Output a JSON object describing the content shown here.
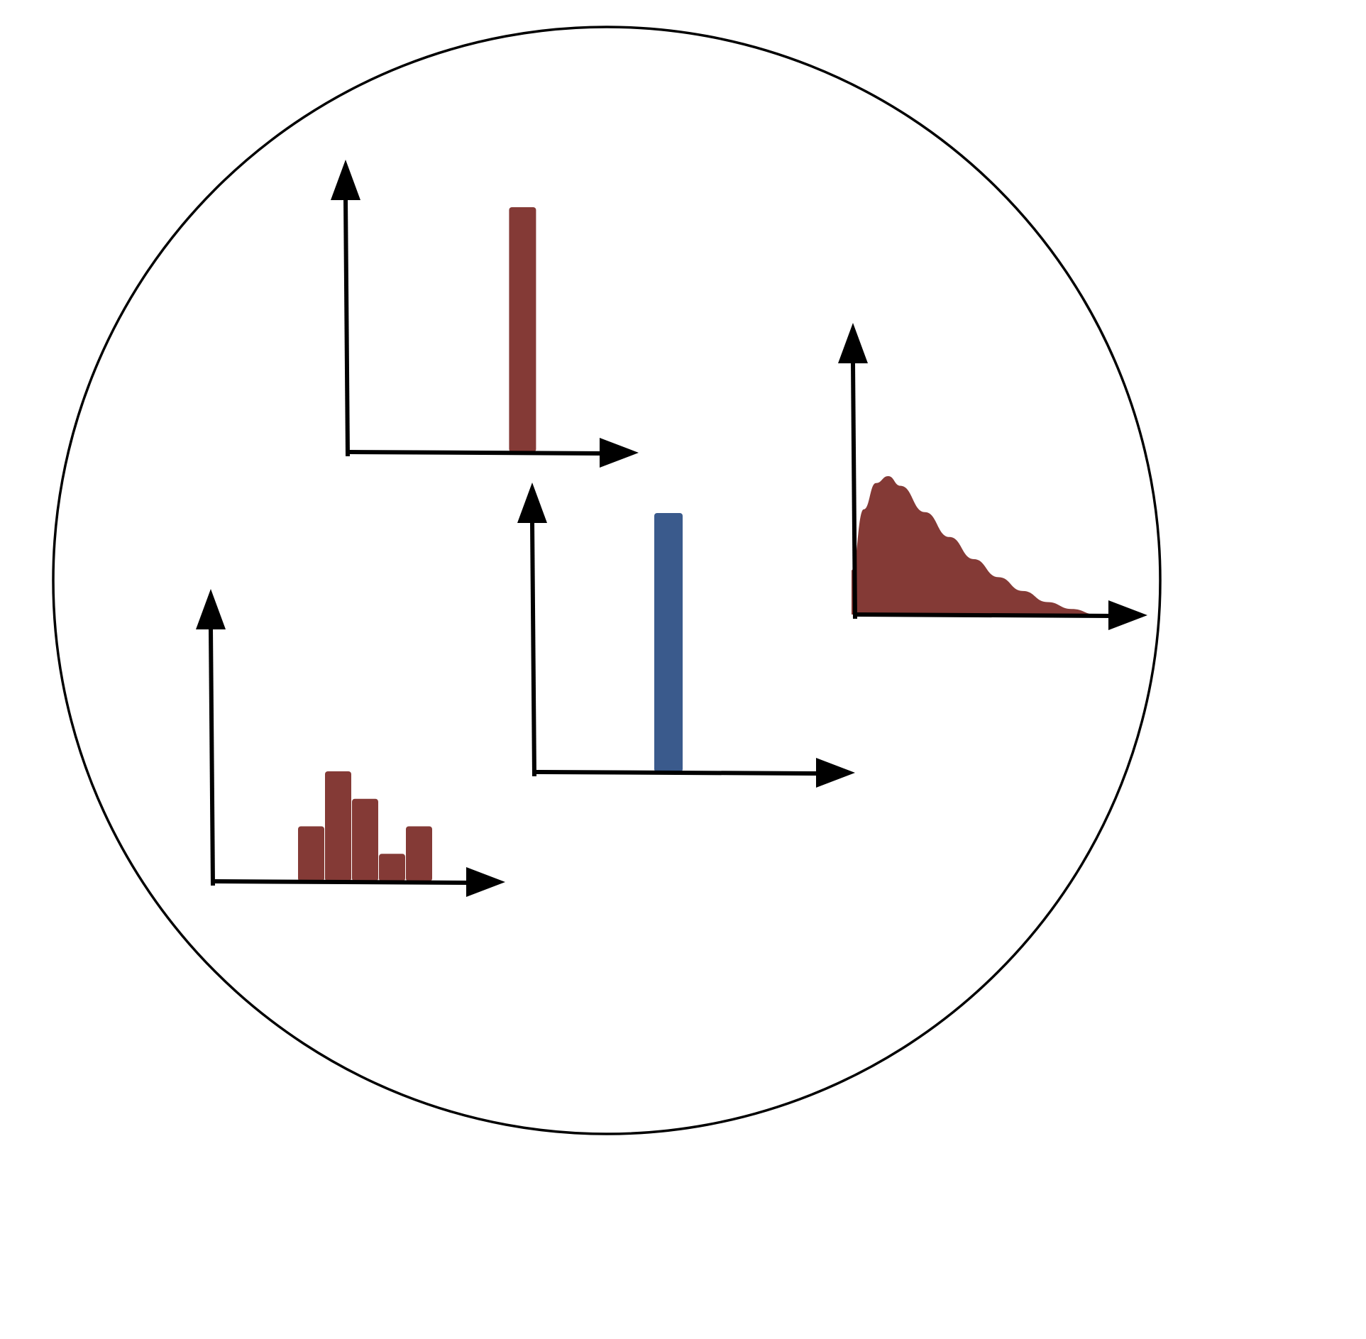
{
  "colors": {
    "background": "#ffffff",
    "outline": "#000000",
    "axis": "#000000",
    "bar_red": "#843a36",
    "bar_blue": "#3a5a8c",
    "density_fill": "#843a36"
  },
  "chart_data": [
    {
      "type": "bar",
      "name": "single-red-bar-chart",
      "values": [
        1
      ],
      "bar_position": 0.77,
      "color": "#843a36"
    },
    {
      "type": "bar",
      "name": "histogram-chart",
      "values": [
        2,
        4,
        3,
        1,
        2
      ],
      "color": "#843a36"
    },
    {
      "type": "bar",
      "name": "single-blue-bar-chart",
      "values": [
        1
      ],
      "bar_position": 0.45,
      "color": "#3a5a8c"
    },
    {
      "type": "area",
      "name": "skewed-density-chart",
      "x": [
        0,
        0.05,
        0.1,
        0.15,
        0.2,
        0.3,
        0.4,
        0.5,
        0.6,
        0.7,
        0.8,
        0.9,
        1.0
      ],
      "values": [
        0.32,
        0.76,
        0.95,
        1.0,
        0.93,
        0.74,
        0.56,
        0.4,
        0.27,
        0.17,
        0.09,
        0.04,
        0.0
      ],
      "color": "#843a36"
    }
  ]
}
